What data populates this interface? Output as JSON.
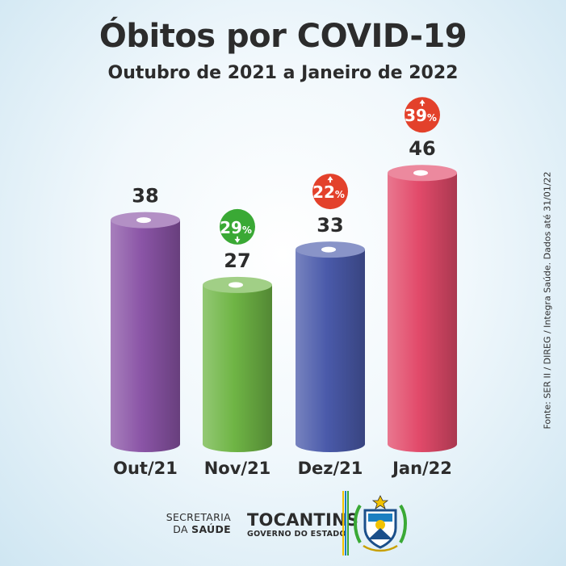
{
  "header": {
    "title": "Óbitos por COVID-19",
    "subtitle": "Outubro de 2021 a Janeiro de 2022"
  },
  "chart_data": {
    "type": "bar",
    "title": "Óbitos por COVID-19",
    "subtitle": "Outubro de 2021 a Janeiro de 2022",
    "categories": [
      "Out/21",
      "Nov/21",
      "Dez/21",
      "Jan/22"
    ],
    "values": [
      38,
      27,
      33,
      46
    ],
    "changes": [
      null,
      {
        "label": "29%",
        "direction": "down",
        "color": "#3aa935"
      },
      {
        "label": "22%",
        "direction": "up",
        "color": "#e3412b"
      },
      {
        "label": "39%",
        "direction": "up",
        "color": "#e3412b"
      }
    ],
    "colors": [
      "#8a54a6",
      "#6fb545",
      "#4a5aaa",
      "#e24a6a"
    ],
    "xlabel": "",
    "ylabel": "",
    "grid": false,
    "legend": "none"
  },
  "source": "Fonte: SER II / DIREG / Integra Saúde. Dados até 31/01/22",
  "footer": {
    "secretaria_line1": "SECRETARIA",
    "secretaria_da": "DA ",
    "secretaria_saude": "SAÚDE",
    "state": "TOCANTINS",
    "government": "GOVERNO DO ESTADO",
    "flag_colors": [
      "#f2c200",
      "#1b7fc1",
      "#3aa935"
    ]
  }
}
